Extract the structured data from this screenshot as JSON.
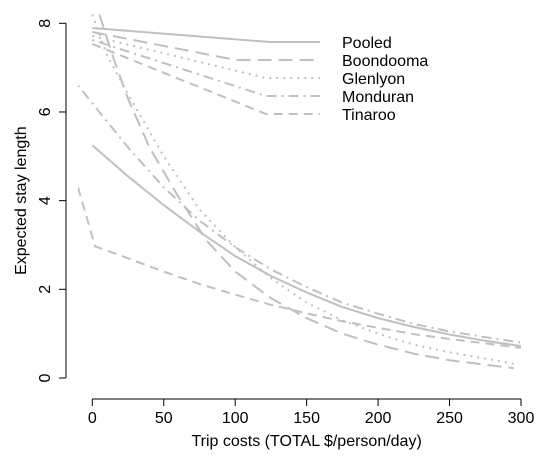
{
  "chart_data": {
    "type": "line",
    "xlabel": "Trip costs (TOTAL $/person/day)",
    "ylabel": "Expected stay length",
    "xlim": [
      -10,
      300
    ],
    "ylim": [
      0,
      8.3
    ],
    "xticks": [
      0,
      50,
      100,
      150,
      200,
      250,
      300
    ],
    "yticks": [
      0,
      2,
      4,
      6,
      8
    ],
    "grid": false,
    "legend_position": "top-right",
    "line_color": "#c0c0c0",
    "series": [
      {
        "name": "Pooled",
        "dash": "solid",
        "x": [
          0,
          25,
          50,
          75,
          100,
          125,
          150,
          175,
          200,
          225,
          250,
          275,
          300
        ],
        "y": [
          5.25,
          4.55,
          3.9,
          3.3,
          2.75,
          2.3,
          1.93,
          1.6,
          1.35,
          1.15,
          0.98,
          0.84,
          0.72
        ]
      },
      {
        "name": "Boondooma",
        "dash": "longdash",
        "x": [
          5,
          15,
          25,
          40,
          60,
          80,
          100,
          125,
          150,
          175,
          200,
          225,
          250,
          275,
          295
        ],
        "y": [
          8.2,
          7.2,
          6.3,
          5.2,
          4.1,
          3.1,
          2.4,
          1.8,
          1.35,
          1.0,
          0.75,
          0.55,
          0.4,
          0.3,
          0.22
        ]
      },
      {
        "name": "Glenlyon",
        "dash": "dotted",
        "x": [
          0,
          10,
          25,
          50,
          75,
          100,
          125,
          150,
          175,
          200,
          225,
          250,
          275,
          295
        ],
        "y": [
          8.2,
          7.3,
          6.4,
          5.0,
          3.8,
          2.95,
          2.25,
          1.7,
          1.3,
          1.0,
          0.75,
          0.58,
          0.44,
          0.32
        ]
      },
      {
        "name": "Monduran",
        "dash": "dotdash",
        "x": [
          -10,
          0,
          25,
          50,
          75,
          100,
          125,
          150,
          175,
          200,
          225,
          250,
          275,
          300
        ],
        "y": [
          6.6,
          6.2,
          5.2,
          4.3,
          3.55,
          2.95,
          2.45,
          2.05,
          1.7,
          1.45,
          1.22,
          1.05,
          0.92,
          0.8
        ]
      },
      {
        "name": "Tinaroo",
        "dash": "dashed",
        "x": [
          -10,
          2,
          25,
          50,
          75,
          100,
          125,
          150,
          175,
          200,
          225,
          250,
          275,
          300
        ],
        "y": [
          4.3,
          2.97,
          2.7,
          2.4,
          2.12,
          1.88,
          1.65,
          1.46,
          1.28,
          1.13,
          0.99,
          0.88,
          0.78,
          0.68
        ]
      }
    ]
  }
}
